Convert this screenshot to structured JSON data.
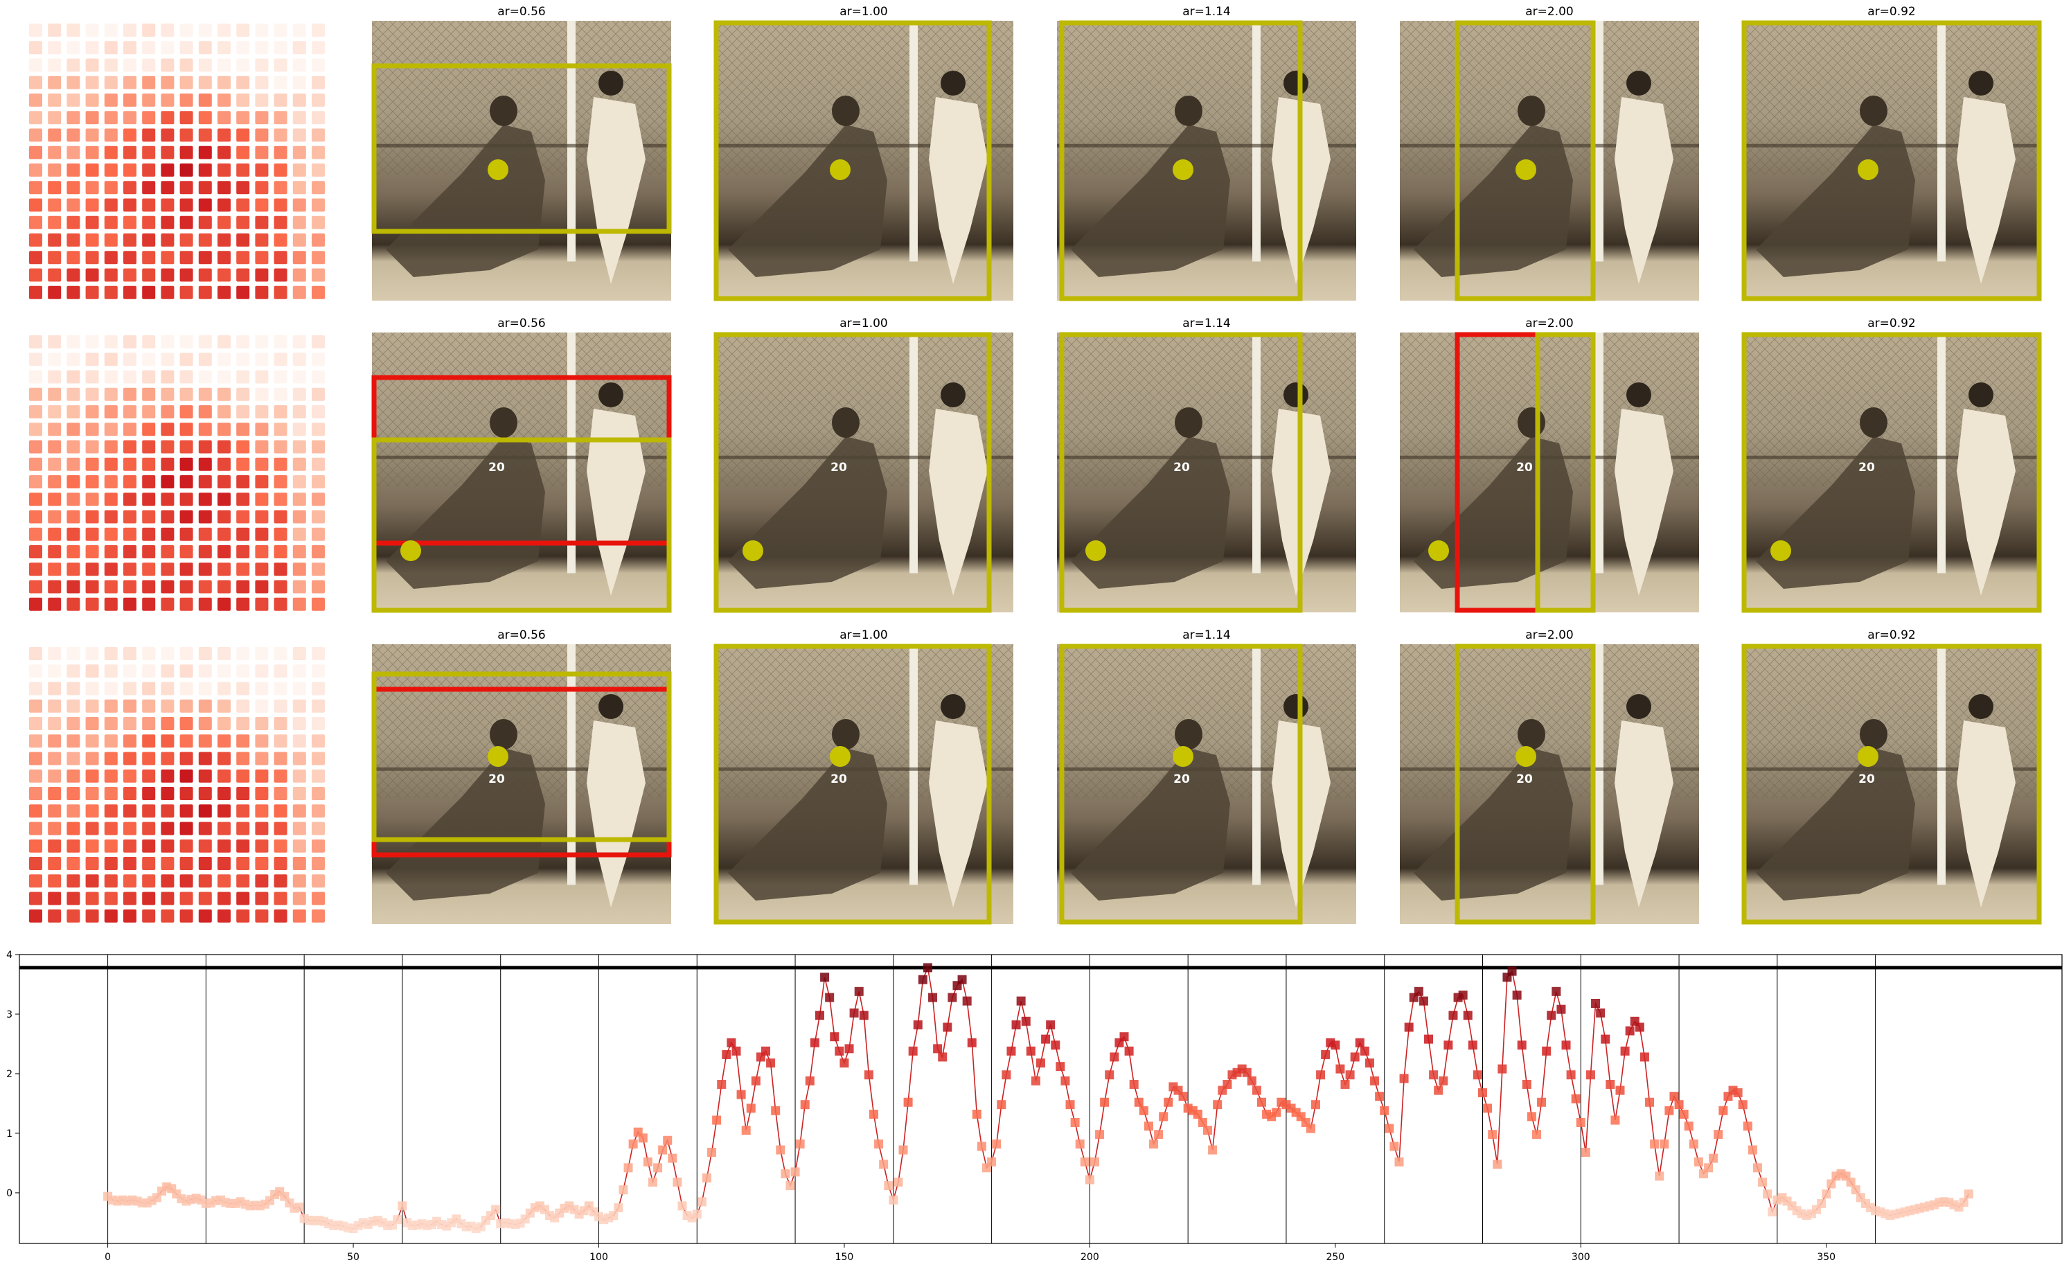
{
  "grid_rows": [
    {
      "thumbnails": [
        {
          "title": "ar=0.56",
          "dot": "yellow",
          "jersey_number": ""
        },
        {
          "title": "ar=1.00",
          "dot": "yellow",
          "jersey_number": ""
        },
        {
          "title": "ar=1.14",
          "dot": "yellow",
          "jersey_number": ""
        },
        {
          "title": "ar=2.00",
          "dot": "yellow",
          "jersey_number": ""
        },
        {
          "title": "ar=0.92",
          "dot": "yellow",
          "jersey_number": ""
        }
      ]
    },
    {
      "thumbnails": [
        {
          "title": "ar=0.56",
          "dot": "yellow",
          "jersey_number": "20"
        },
        {
          "title": "ar=1.00",
          "dot": "yellow",
          "jersey_number": "20"
        },
        {
          "title": "ar=1.14",
          "dot": "yellow",
          "jersey_number": "20"
        },
        {
          "title": "ar=2.00",
          "dot": "yellow",
          "jersey_number": "20"
        },
        {
          "title": "ar=0.92",
          "dot": "yellow",
          "jersey_number": "20"
        }
      ]
    },
    {
      "thumbnails": [
        {
          "title": "ar=0.56",
          "dot": "yellow",
          "jersey_number": "20"
        },
        {
          "title": "ar=1.00",
          "dot": "yellow",
          "jersey_number": "20"
        },
        {
          "title": "ar=1.14",
          "dot": "yellow",
          "jersey_number": "20"
        },
        {
          "title": "ar=2.00",
          "dot": "yellow",
          "jersey_number": "20"
        },
        {
          "title": "ar=0.92",
          "dot": "yellow",
          "jersey_number": "20"
        }
      ]
    }
  ],
  "colors": {
    "crop_box": "#bdb800",
    "alt_box": "#e8140c",
    "dot": "#c8c400",
    "line": "#cc2222",
    "sepia_light": "#d9cdb2",
    "sepia_dark": "#4a3d2a"
  },
  "chart_data": {
    "type": "line",
    "series_style": "line with square markers colored by value (Reds colormap)",
    "xlim": [
      -18,
      398
    ],
    "ylim": [
      -0.85,
      4.0
    ],
    "xticks": [
      0,
      50,
      100,
      150,
      200,
      250,
      300,
      350
    ],
    "yticks": [
      0,
      1,
      2,
      3,
      4
    ],
    "vertical_lines_x": [
      0,
      20,
      40,
      60,
      80,
      100,
      120,
      140,
      160,
      180,
      200,
      220,
      240,
      260,
      280,
      300,
      320,
      340,
      360
    ],
    "horizontal_line_y": 3.78,
    "xlabel": "",
    "ylabel": "",
    "title": "",
    "legend": "none",
    "grid": false,
    "points": [
      [
        0,
        -0.06
      ],
      [
        1,
        -0.12
      ],
      [
        2,
        -0.14
      ],
      [
        3,
        -0.12
      ],
      [
        4,
        -0.14
      ],
      [
        5,
        -0.12
      ],
      [
        6,
        -0.14
      ],
      [
        7,
        -0.17
      ],
      [
        8,
        -0.17
      ],
      [
        9,
        -0.13
      ],
      [
        10,
        -0.08
      ],
      [
        11,
        0.03
      ],
      [
        12,
        0.1
      ],
      [
        13,
        0.07
      ],
      [
        14,
        -0.02
      ],
      [
        15,
        -0.1
      ],
      [
        16,
        -0.14
      ],
      [
        17,
        -0.11
      ],
      [
        18,
        -0.09
      ],
      [
        19,
        -0.12
      ],
      [
        20,
        -0.18
      ],
      [
        21,
        -0.17
      ],
      [
        22,
        -0.13
      ],
      [
        23,
        -0.12
      ],
      [
        24,
        -0.16
      ],
      [
        25,
        -0.18
      ],
      [
        26,
        -0.18
      ],
      [
        27,
        -0.15
      ],
      [
        28,
        -0.19
      ],
      [
        29,
        -0.22
      ],
      [
        30,
        -0.21
      ],
      [
        31,
        -0.22
      ],
      [
        32,
        -0.19
      ],
      [
        33,
        -0.13
      ],
      [
        34,
        -0.03
      ],
      [
        35,
        0.02
      ],
      [
        36,
        -0.06
      ],
      [
        37,
        -0.17
      ],
      [
        38,
        -0.26
      ],
      [
        39,
        -0.24
      ],
      [
        40,
        -0.43
      ],
      [
        41,
        -0.46
      ],
      [
        42,
        -0.47
      ],
      [
        43,
        -0.46
      ],
      [
        44,
        -0.48
      ],
      [
        45,
        -0.52
      ],
      [
        46,
        -0.55
      ],
      [
        47,
        -0.54
      ],
      [
        48,
        -0.56
      ],
      [
        49,
        -0.59
      ],
      [
        50,
        -0.6
      ],
      [
        51,
        -0.55
      ],
      [
        52,
        -0.5
      ],
      [
        53,
        -0.53
      ],
      [
        54,
        -0.48
      ],
      [
        55,
        -0.46
      ],
      [
        56,
        -0.5
      ],
      [
        57,
        -0.55
      ],
      [
        58,
        -0.54
      ],
      [
        59,
        -0.45
      ],
      [
        60,
        -0.22
      ],
      [
        61,
        -0.5
      ],
      [
        62,
        -0.55
      ],
      [
        63,
        -0.54
      ],
      [
        64,
        -0.52
      ],
      [
        65,
        -0.55
      ],
      [
        66,
        -0.53
      ],
      [
        67,
        -0.48
      ],
      [
        68,
        -0.53
      ],
      [
        69,
        -0.56
      ],
      [
        70,
        -0.5
      ],
      [
        71,
        -0.44
      ],
      [
        72,
        -0.52
      ],
      [
        73,
        -0.57
      ],
      [
        74,
        -0.56
      ],
      [
        75,
        -0.6
      ],
      [
        76,
        -0.57
      ],
      [
        77,
        -0.46
      ],
      [
        78,
        -0.38
      ],
      [
        79,
        -0.28
      ],
      [
        80,
        -0.52
      ],
      [
        81,
        -0.5
      ],
      [
        82,
        -0.52
      ],
      [
        83,
        -0.53
      ],
      [
        84,
        -0.51
      ],
      [
        85,
        -0.44
      ],
      [
        86,
        -0.34
      ],
      [
        87,
        -0.25
      ],
      [
        88,
        -0.22
      ],
      [
        89,
        -0.28
      ],
      [
        90,
        -0.38
      ],
      [
        91,
        -0.42
      ],
      [
        92,
        -0.34
      ],
      [
        93,
        -0.26
      ],
      [
        94,
        -0.22
      ],
      [
        95,
        -0.28
      ],
      [
        96,
        -0.36
      ],
      [
        97,
        -0.3
      ],
      [
        98,
        -0.22
      ],
      [
        99,
        -0.32
      ],
      [
        100,
        -0.4
      ],
      [
        101,
        -0.45
      ],
      [
        102,
        -0.42
      ],
      [
        103,
        -0.38
      ],
      [
        104,
        -0.25
      ],
      [
        105,
        0.05
      ],
      [
        106,
        0.42
      ],
      [
        107,
        0.82
      ],
      [
        108,
        1.02
      ],
      [
        109,
        0.92
      ],
      [
        110,
        0.52
      ],
      [
        111,
        0.18
      ],
      [
        112,
        0.42
      ],
      [
        113,
        0.72
      ],
      [
        114,
        0.88
      ],
      [
        115,
        0.58
      ],
      [
        116,
        0.18
      ],
      [
        117,
        -0.22
      ],
      [
        118,
        -0.38
      ],
      [
        119,
        -0.42
      ],
      [
        120,
        -0.36
      ],
      [
        121,
        -0.15
      ],
      [
        122,
        0.25
      ],
      [
        123,
        0.68
      ],
      [
        124,
        1.22
      ],
      [
        125,
        1.82
      ],
      [
        126,
        2.32
      ],
      [
        127,
        2.52
      ],
      [
        128,
        2.38
      ],
      [
        129,
        1.65
      ],
      [
        130,
        1.05
      ],
      [
        131,
        1.42
      ],
      [
        132,
        1.88
      ],
      [
        133,
        2.28
      ],
      [
        134,
        2.38
      ],
      [
        135,
        2.18
      ],
      [
        136,
        1.38
      ],
      [
        137,
        0.72
      ],
      [
        138,
        0.32
      ],
      [
        139,
        0.12
      ],
      [
        140,
        0.35
      ],
      [
        141,
        0.82
      ],
      [
        142,
        1.48
      ],
      [
        143,
        1.88
      ],
      [
        144,
        2.52
      ],
      [
        145,
        2.98
      ],
      [
        146,
        3.62
      ],
      [
        147,
        3.28
      ],
      [
        148,
        2.62
      ],
      [
        149,
        2.38
      ],
      [
        150,
        2.18
      ],
      [
        151,
        2.42
      ],
      [
        152,
        3.02
      ],
      [
        153,
        3.38
      ],
      [
        154,
        2.98
      ],
      [
        155,
        1.98
      ],
      [
        156,
        1.32
      ],
      [
        157,
        0.82
      ],
      [
        158,
        0.48
      ],
      [
        159,
        0.12
      ],
      [
        160,
        -0.12
      ],
      [
        161,
        0.18
      ],
      [
        162,
        0.72
      ],
      [
        163,
        1.52
      ],
      [
        164,
        2.38
      ],
      [
        165,
        2.82
      ],
      [
        166,
        3.58
      ],
      [
        167,
        3.78
      ],
      [
        168,
        3.28
      ],
      [
        169,
        2.42
      ],
      [
        170,
        2.28
      ],
      [
        171,
        2.78
      ],
      [
        172,
        3.28
      ],
      [
        173,
        3.48
      ],
      [
        174,
        3.58
      ],
      [
        175,
        3.22
      ],
      [
        176,
        2.52
      ],
      [
        177,
        1.32
      ],
      [
        178,
        0.78
      ],
      [
        179,
        0.42
      ],
      [
        180,
        0.52
      ],
      [
        181,
        0.82
      ],
      [
        182,
        1.48
      ],
      [
        183,
        1.98
      ],
      [
        184,
        2.38
      ],
      [
        185,
        2.82
      ],
      [
        186,
        3.22
      ],
      [
        187,
        2.88
      ],
      [
        188,
        2.38
      ],
      [
        189,
        1.88
      ],
      [
        190,
        2.18
      ],
      [
        191,
        2.58
      ],
      [
        192,
        2.82
      ],
      [
        193,
        2.48
      ],
      [
        194,
        2.12
      ],
      [
        195,
        1.88
      ],
      [
        196,
        1.48
      ],
      [
        197,
        1.18
      ],
      [
        198,
        0.82
      ],
      [
        199,
        0.52
      ],
      [
        200,
        0.22
      ],
      [
        201,
        0.52
      ],
      [
        202,
        0.98
      ],
      [
        203,
        1.52
      ],
      [
        204,
        1.98
      ],
      [
        205,
        2.28
      ],
      [
        206,
        2.52
      ],
      [
        207,
        2.62
      ],
      [
        208,
        2.38
      ],
      [
        209,
        1.82
      ],
      [
        210,
        1.52
      ],
      [
        211,
        1.38
      ],
      [
        212,
        1.12
      ],
      [
        213,
        0.82
      ],
      [
        214,
        0.98
      ],
      [
        215,
        1.28
      ],
      [
        216,
        1.52
      ],
      [
        217,
        1.78
      ],
      [
        218,
        1.72
      ],
      [
        219,
        1.62
      ],
      [
        220,
        1.42
      ],
      [
        221,
        1.38
      ],
      [
        222,
        1.32
      ],
      [
        223,
        1.18
      ],
      [
        224,
        1.05
      ],
      [
        225,
        0.72
      ],
      [
        226,
        1.48
      ],
      [
        227,
        1.72
      ],
      [
        228,
        1.82
      ],
      [
        229,
        1.98
      ],
      [
        230,
        2.02
      ],
      [
        231,
        2.08
      ],
      [
        232,
        2.02
      ],
      [
        233,
        1.88
      ],
      [
        234,
        1.72
      ],
      [
        235,
        1.52
      ],
      [
        236,
        1.32
      ],
      [
        237,
        1.28
      ],
      [
        238,
        1.35
      ],
      [
        239,
        1.52
      ],
      [
        240,
        1.48
      ],
      [
        241,
        1.42
      ],
      [
        242,
        1.35
      ],
      [
        243,
        1.28
      ],
      [
        244,
        1.18
      ],
      [
        245,
        1.08
      ],
      [
        246,
        1.48
      ],
      [
        247,
        1.98
      ],
      [
        248,
        2.32
      ],
      [
        249,
        2.52
      ],
      [
        250,
        2.48
      ],
      [
        251,
        2.08
      ],
      [
        252,
        1.82
      ],
      [
        253,
        1.98
      ],
      [
        254,
        2.28
      ],
      [
        255,
        2.52
      ],
      [
        256,
        2.38
      ],
      [
        257,
        2.18
      ],
      [
        258,
        1.88
      ],
      [
        259,
        1.62
      ],
      [
        260,
        1.38
      ],
      [
        261,
        1.08
      ],
      [
        262,
        0.78
      ],
      [
        263,
        0.52
      ],
      [
        264,
        1.92
      ],
      [
        265,
        2.78
      ],
      [
        266,
        3.28
      ],
      [
        267,
        3.38
      ],
      [
        268,
        3.22
      ],
      [
        269,
        2.58
      ],
      [
        270,
        1.98
      ],
      [
        271,
        1.72
      ],
      [
        272,
        1.88
      ],
      [
        273,
        2.48
      ],
      [
        274,
        2.98
      ],
      [
        275,
        3.28
      ],
      [
        276,
        3.32
      ],
      [
        277,
        2.98
      ],
      [
        278,
        2.48
      ],
      [
        279,
        1.98
      ],
      [
        280,
        1.68
      ],
      [
        281,
        1.42
      ],
      [
        282,
        0.98
      ],
      [
        283,
        0.48
      ],
      [
        284,
        2.08
      ],
      [
        285,
        3.62
      ],
      [
        286,
        3.72
      ],
      [
        287,
        3.32
      ],
      [
        288,
        2.48
      ],
      [
        289,
        1.82
      ],
      [
        290,
        1.28
      ],
      [
        291,
        0.98
      ],
      [
        292,
        1.52
      ],
      [
        293,
        2.38
      ],
      [
        294,
        2.98
      ],
      [
        295,
        3.38
      ],
      [
        296,
        3.08
      ],
      [
        297,
        2.48
      ],
      [
        298,
        1.98
      ],
      [
        299,
        1.58
      ],
      [
        300,
        1.18
      ],
      [
        301,
        0.68
      ],
      [
        302,
        1.98
      ],
      [
        303,
        3.18
      ],
      [
        304,
        3.02
      ],
      [
        305,
        2.58
      ],
      [
        306,
        1.82
      ],
      [
        307,
        1.22
      ],
      [
        308,
        1.72
      ],
      [
        309,
        2.38
      ],
      [
        310,
        2.72
      ],
      [
        311,
        2.88
      ],
      [
        312,
        2.78
      ],
      [
        313,
        2.28
      ],
      [
        314,
        1.52
      ],
      [
        315,
        0.82
      ],
      [
        316,
        0.28
      ],
      [
        317,
        0.82
      ],
      [
        318,
        1.38
      ],
      [
        319,
        1.62
      ],
      [
        320,
        1.48
      ],
      [
        321,
        1.32
      ],
      [
        322,
        1.12
      ],
      [
        323,
        0.82
      ],
      [
        324,
        0.52
      ],
      [
        325,
        0.32
      ],
      [
        326,
        0.42
      ],
      [
        327,
        0.58
      ],
      [
        328,
        0.98
      ],
      [
        329,
        1.38
      ],
      [
        330,
        1.62
      ],
      [
        331,
        1.72
      ],
      [
        332,
        1.68
      ],
      [
        333,
        1.48
      ],
      [
        334,
        1.12
      ],
      [
        335,
        0.72
      ],
      [
        336,
        0.42
      ],
      [
        337,
        0.18
      ],
      [
        338,
        -0.02
      ],
      [
        339,
        -0.32
      ],
      [
        340,
        -0.12
      ],
      [
        341,
        -0.08
      ],
      [
        342,
        -0.14
      ],
      [
        343,
        -0.22
      ],
      [
        344,
        -0.3
      ],
      [
        345,
        -0.35
      ],
      [
        346,
        -0.38
      ],
      [
        347,
        -0.35
      ],
      [
        348,
        -0.28
      ],
      [
        349,
        -0.18
      ],
      [
        350,
        -0.02
      ],
      [
        351,
        0.15
      ],
      [
        352,
        0.28
      ],
      [
        353,
        0.32
      ],
      [
        354,
        0.28
      ],
      [
        355,
        0.18
      ],
      [
        356,
        0.05
      ],
      [
        357,
        -0.08
      ],
      [
        358,
        -0.18
      ],
      [
        359,
        -0.25
      ],
      [
        360,
        -0.3
      ],
      [
        361,
        -0.32
      ],
      [
        362,
        -0.35
      ],
      [
        363,
        -0.38
      ],
      [
        364,
        -0.36
      ],
      [
        365,
        -0.34
      ],
      [
        366,
        -0.32
      ],
      [
        367,
        -0.3
      ],
      [
        368,
        -0.28
      ],
      [
        369,
        -0.26
      ],
      [
        370,
        -0.24
      ],
      [
        371,
        -0.22
      ],
      [
        372,
        -0.2
      ],
      [
        373,
        -0.16
      ],
      [
        374,
        -0.15
      ],
      [
        375,
        -0.16
      ],
      [
        376,
        -0.2
      ],
      [
        377,
        -0.24
      ],
      [
        378,
        -0.16
      ],
      [
        379,
        -0.02
      ]
    ]
  }
}
